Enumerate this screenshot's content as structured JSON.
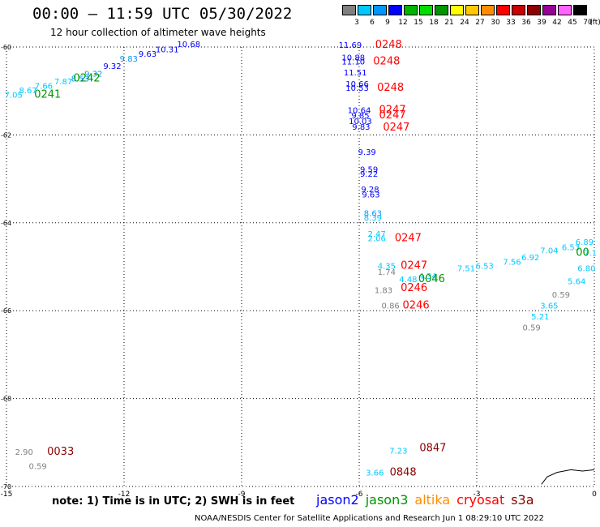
{
  "title": "00:00 – 11:59 UTC 05/30/2022",
  "subtitle": "12 hour collection of altimeter wave heights",
  "legend": {
    "unit": "(ft)",
    "entries": [
      {
        "label": "3",
        "color": "#808080"
      },
      {
        "label": "6",
        "color": "#00c8ff"
      },
      {
        "label": "9",
        "color": "#0096ff"
      },
      {
        "label": "12",
        "color": "#0000ff"
      },
      {
        "label": "15",
        "color": "#00b400"
      },
      {
        "label": "18",
        "color": "#00dc00"
      },
      {
        "label": "21",
        "color": "#009600"
      },
      {
        "label": "24",
        "color": "#ffff00"
      },
      {
        "label": "27",
        "color": "#ffc800"
      },
      {
        "label": "30",
        "color": "#ff8c00"
      },
      {
        "label": "33",
        "color": "#ff0000"
      },
      {
        "label": "36",
        "color": "#c80000"
      },
      {
        "label": "39",
        "color": "#8c0000"
      },
      {
        "label": "42",
        "color": "#960096"
      },
      {
        "label": "45",
        "color": "#ff64ff"
      },
      {
        "label": "70",
        "color": "#000000"
      }
    ]
  },
  "axes": {
    "lon_ticks": [
      {
        "value": -15,
        "label": "-15"
      },
      {
        "value": -12,
        "label": "-12"
      },
      {
        "value": -9,
        "label": "-9"
      },
      {
        "value": -6,
        "label": "-6"
      },
      {
        "value": -3,
        "label": "-3"
      },
      {
        "value": 0,
        "label": "0"
      }
    ],
    "lat_ticks": [
      {
        "value": -60,
        "label": "-60"
      },
      {
        "value": -62,
        "label": "-62"
      },
      {
        "value": -64,
        "label": "-64"
      },
      {
        "value": -66,
        "label": "-66"
      },
      {
        "value": -68,
        "label": "-68"
      },
      {
        "value": -70,
        "label": "-70"
      }
    ]
  },
  "observations": [
    {
      "lon": -14.82,
      "lat": -61.15,
      "value": "7.05",
      "color": "#00c8ff"
    },
    {
      "lon": -14.45,
      "lat": -61.05,
      "value": "8.67",
      "color": "#00c8ff"
    },
    {
      "lon": -14.05,
      "lat": -60.95,
      "value": "7.66",
      "color": "#00c8ff"
    },
    {
      "lon": -13.55,
      "lat": -60.85,
      "value": "7.87",
      "color": "#00c8ff"
    },
    {
      "lon": -13.12,
      "lat": -60.78,
      "value": "8.53",
      "color": "#0096ff"
    },
    {
      "lon": -12.78,
      "lat": -60.67,
      "value": "9.32",
      "color": "#0096ff"
    },
    {
      "lon": -12.3,
      "lat": -60.5,
      "value": "9.32",
      "color": "#0000ff"
    },
    {
      "lon": -11.88,
      "lat": -60.33,
      "value": "9.83",
      "color": "#0096ff"
    },
    {
      "lon": -11.4,
      "lat": -60.22,
      "value": "9.63",
      "color": "#0000ff"
    },
    {
      "lon": -10.9,
      "lat": -60.12,
      "value": "10.31",
      "color": "#0000ff"
    },
    {
      "lon": -10.35,
      "lat": -60.0,
      "value": "10.68",
      "color": "#0000ff"
    },
    {
      "lon": -6.23,
      "lat": -60.02,
      "value": "11.69",
      "color": "#0000ff"
    },
    {
      "lon": -6.15,
      "lat": -60.3,
      "value": "10.88",
      "color": "#0000ff"
    },
    {
      "lon": -6.15,
      "lat": -60.4,
      "value": "11.10",
      "color": "#0000ff"
    },
    {
      "lon": -6.1,
      "lat": -60.65,
      "value": "11.51",
      "color": "#0000ff"
    },
    {
      "lon": -6.05,
      "lat": -60.9,
      "value": "10.66",
      "color": "#0000ff"
    },
    {
      "lon": -6.05,
      "lat": -61.0,
      "value": "10.53",
      "color": "#0000ff"
    },
    {
      "lon": -6.0,
      "lat": -61.5,
      "value": "10.64",
      "color": "#0000ff"
    },
    {
      "lon": -5.97,
      "lat": -61.62,
      "value": "9.85",
      "color": "#0000ff"
    },
    {
      "lon": -5.97,
      "lat": -61.75,
      "value": "10.03",
      "color": "#0000ff"
    },
    {
      "lon": -5.95,
      "lat": -61.88,
      "value": "9.83",
      "color": "#0000ff"
    },
    {
      "lon": -5.8,
      "lat": -62.45,
      "value": "9.39",
      "color": "#0000ff"
    },
    {
      "lon": -5.75,
      "lat": -62.85,
      "value": "9.59",
      "color": "#0000ff"
    },
    {
      "lon": -5.75,
      "lat": -62.95,
      "value": "9.22",
      "color": "#0000ff"
    },
    {
      "lon": -5.72,
      "lat": -63.3,
      "value": "9.28",
      "color": "#0000ff"
    },
    {
      "lon": -5.7,
      "lat": -63.42,
      "value": "9.63",
      "color": "#0000ff"
    },
    {
      "lon": -5.65,
      "lat": -63.85,
      "value": "8.63",
      "color": "#0096ff"
    },
    {
      "lon": -5.65,
      "lat": -63.95,
      "value": "8.39",
      "color": "#00c8ff"
    },
    {
      "lon": -5.55,
      "lat": -64.32,
      "value": "2.47",
      "color": "#00c8ff"
    },
    {
      "lon": -5.55,
      "lat": -64.42,
      "value": "2.06",
      "color": "#00c8ff"
    },
    {
      "lon": -5.3,
      "lat": -65.05,
      "value": "4.35",
      "color": "#00c8ff"
    },
    {
      "lon": -5.3,
      "lat": -65.18,
      "value": "1.74",
      "color": "#808080"
    },
    {
      "lon": -4.75,
      "lat": -65.35,
      "value": "4.48",
      "color": "#00c8ff"
    },
    {
      "lon": -4.25,
      "lat": -65.28,
      "value": "4.34",
      "color": "#00c8ff"
    },
    {
      "lon": -5.38,
      "lat": -65.6,
      "value": "1.83",
      "color": "#808080"
    },
    {
      "lon": -5.2,
      "lat": -65.95,
      "value": "0.86",
      "color": "#808080"
    },
    {
      "lon": -3.27,
      "lat": -65.1,
      "value": "7.51",
      "color": "#00c8ff"
    },
    {
      "lon": -2.8,
      "lat": -65.05,
      "value": "6.53",
      "color": "#00c8ff"
    },
    {
      "lon": -2.1,
      "lat": -64.95,
      "value": "7.56",
      "color": "#00c8ff"
    },
    {
      "lon": -1.63,
      "lat": -64.85,
      "value": "6.92",
      "color": "#00c8ff"
    },
    {
      "lon": -1.15,
      "lat": -64.7,
      "value": "7.04",
      "color": "#00c8ff"
    },
    {
      "lon": -0.6,
      "lat": -64.62,
      "value": "6.53",
      "color": "#00c8ff"
    },
    {
      "lon": -0.25,
      "lat": -64.5,
      "value": "6.89",
      "color": "#00c8ff"
    },
    {
      "lon": -0.1,
      "lat": -64.75,
      "value": "7.1",
      "color": "#00c8ff"
    },
    {
      "lon": -0.2,
      "lat": -65.1,
      "value": "6.80",
      "color": "#00c8ff"
    },
    {
      "lon": -0.45,
      "lat": -65.4,
      "value": "5.64",
      "color": "#00c8ff"
    },
    {
      "lon": -0.85,
      "lat": -65.7,
      "value": "0.59",
      "color": "#808080"
    },
    {
      "lon": -1.15,
      "lat": -65.95,
      "value": "3.65",
      "color": "#00c8ff"
    },
    {
      "lon": -1.38,
      "lat": -66.2,
      "value": "5.21",
      "color": "#00c8ff"
    },
    {
      "lon": -1.6,
      "lat": -66.45,
      "value": "0.59",
      "color": "#808080"
    },
    {
      "lon": -14.55,
      "lat": -69.28,
      "value": "2.90",
      "color": "#808080"
    },
    {
      "lon": -14.2,
      "lat": -69.6,
      "value": "0.59",
      "color": "#808080"
    },
    {
      "lon": -5.0,
      "lat": -69.25,
      "value": "7.23",
      "color": "#00c8ff"
    },
    {
      "lon": -5.6,
      "lat": -69.75,
      "value": "3.66",
      "color": "#00c8ff"
    }
  ],
  "times": [
    {
      "lon": -13.95,
      "lat": -61.15,
      "value": "0241",
      "color": "#009600"
    },
    {
      "lon": -12.95,
      "lat": -60.78,
      "value": "0242",
      "color": "#009600"
    },
    {
      "lon": -5.25,
      "lat": -60.02,
      "value": "0248",
      "color": "#ff0000"
    },
    {
      "lon": -5.3,
      "lat": -60.4,
      "value": "0248",
      "color": "#ff0000"
    },
    {
      "lon": -5.2,
      "lat": -61.0,
      "value": "0248",
      "color": "#ff0000"
    },
    {
      "lon": -5.15,
      "lat": -61.5,
      "value": "0247",
      "color": "#ff0000"
    },
    {
      "lon": -5.15,
      "lat": -61.62,
      "value": "0247",
      "color": "#ff0000"
    },
    {
      "lon": -5.05,
      "lat": -61.9,
      "value": "0247",
      "color": "#ff0000"
    },
    {
      "lon": -4.75,
      "lat": -64.42,
      "value": "0247",
      "color": "#ff0000"
    },
    {
      "lon": -4.6,
      "lat": -65.05,
      "value": "0247",
      "color": "#ff0000"
    },
    {
      "lon": -4.15,
      "lat": -65.35,
      "value": "0046",
      "color": "#009600"
    },
    {
      "lon": -4.6,
      "lat": -65.55,
      "value": "0246",
      "color": "#ff0000"
    },
    {
      "lon": -4.55,
      "lat": -65.95,
      "value": "0246",
      "color": "#ff0000"
    },
    {
      "lon": -0.3,
      "lat": -64.75,
      "value": "00",
      "color": "#009600"
    },
    {
      "lon": -13.62,
      "lat": -69.28,
      "value": "0033",
      "color": "#8c0000"
    },
    {
      "lon": -4.12,
      "lat": -69.2,
      "value": "0847",
      "color": "#8c0000"
    },
    {
      "lon": -4.88,
      "lat": -69.75,
      "value": "0848",
      "color": "#8c0000"
    }
  ],
  "footer": {
    "note": "note: 1) Time is in UTC; 2) SWH is in feet",
    "satellites": [
      {
        "name": "jason2",
        "color": "#0000ff"
      },
      {
        "name": "jason3",
        "color": "#009600"
      },
      {
        "name": "altika",
        "color": "#ff8c00"
      },
      {
        "name": "cryosat",
        "color": "#ff0000"
      },
      {
        "name": "s3a",
        "color": "#8c0000"
      }
    ],
    "credit": "NOAA/NESDIS Center for Satellite Applications and Research   Jun  1 08:29:10 UTC 2022"
  }
}
